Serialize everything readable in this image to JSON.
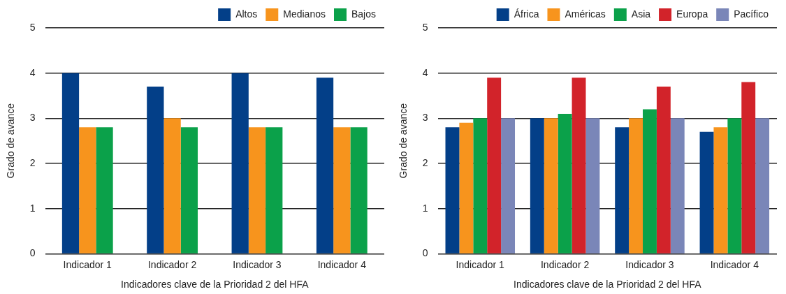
{
  "chart_data": [
    {
      "type": "bar",
      "xlabel": "Indicadores clave de la Prioridad 2 del HFA",
      "ylabel": "Grado de avance",
      "categories": [
        "Indicador 1",
        "Indicador 2",
        "Indicador 3",
        "Indicador 4"
      ],
      "series": [
        {
          "name": "Altos",
          "color": "#033f88",
          "values": [
            4.0,
            3.7,
            4.0,
            3.9
          ]
        },
        {
          "name": "Medianos",
          "color": "#f7941d",
          "values": [
            2.8,
            3.0,
            2.8,
            2.8
          ]
        },
        {
          "name": "Bajos",
          "color": "#0ba14a",
          "values": [
            2.8,
            2.8,
            2.8,
            2.8
          ]
        }
      ],
      "ylim": [
        0,
        5
      ],
      "yticks": [
        0,
        1,
        2,
        3,
        4,
        5
      ],
      "grid": "y",
      "legend": "top right"
    },
    {
      "type": "bar",
      "xlabel": "Indicadores clave de la Prioridad 2 del HFA",
      "ylabel": "Grado de avance",
      "categories": [
        "Indicador 1",
        "Indicador 2",
        "Indicador 3",
        "Indicador 4"
      ],
      "series": [
        {
          "name": "África",
          "color": "#033f88",
          "values": [
            2.8,
            3.0,
            2.8,
            2.7
          ]
        },
        {
          "name": "Américas",
          "color": "#f7941d",
          "values": [
            2.9,
            3.0,
            3.0,
            2.8
          ]
        },
        {
          "name": "Asia",
          "color": "#0ba14a",
          "values": [
            3.0,
            3.1,
            3.2,
            3.0
          ]
        },
        {
          "name": "Europa",
          "color": "#d2232a",
          "values": [
            3.9,
            3.9,
            3.7,
            3.8
          ]
        },
        {
          "name": "Pacífico",
          "color": "#7a86b8",
          "values": [
            3.0,
            3.0,
            3.0,
            3.0
          ]
        }
      ],
      "ylim": [
        0,
        5
      ],
      "yticks": [
        0,
        1,
        2,
        3,
        4,
        5
      ],
      "grid": "y",
      "legend": "top right"
    }
  ]
}
